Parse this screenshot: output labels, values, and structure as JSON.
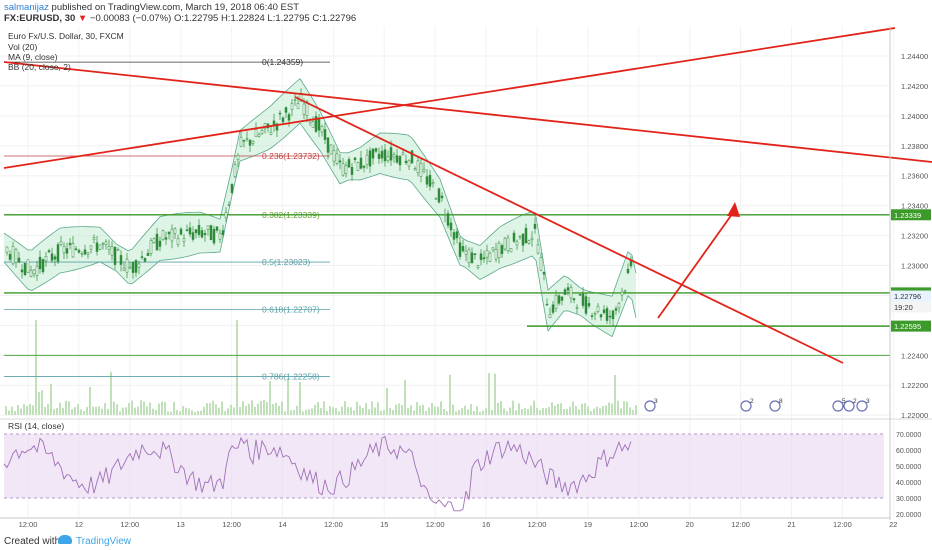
{
  "header": {
    "author": "salmanijaz",
    "published_text": "published on TradingView.com, March 19, 2018 06:40 EST",
    "symbol": "FX:EURUSD, 30",
    "change": "−0.00083 (−0.07%)",
    "ohlc": "O:1.22795 H:1.22824 L:1.22795 C:1.22796"
  },
  "legend": {
    "instrument": "Euro Fx/U.S. Dollar, 30, FXCM",
    "vol": "Vol (20)",
    "ma": "MA (9, close)",
    "bb": "BB (20, close, 2)"
  },
  "rsi_panel": {
    "label": "RSI (14, close)"
  },
  "footer": {
    "created_with": "Created with",
    "brand": "TradingView"
  },
  "colors": {
    "red_line": "#e2231a",
    "green_line": "#3c9a2a",
    "bb_fill": "#c8ecd6",
    "bb_edge": "#5aa98a",
    "candle": "#2e8b3a",
    "rsi_fill": "#e6d3ee",
    "rsi_line": "#a070b8",
    "volume": "#bfe0b8",
    "fib_text": "#5aa0a8"
  },
  "chart_data": {
    "type": "candlestick",
    "price_axis_ticks": [
      "1.24400",
      "1.24200",
      "1.24000",
      "1.23800",
      "1.23600",
      "1.23400",
      "1.23200",
      "1.23000",
      "1.22800",
      "1.22600",
      "1.22400",
      "1.22200",
      "1.22000"
    ],
    "price_tags": [
      {
        "value": "1.23339",
        "kind": "green-level"
      },
      {
        "value": "1.22817",
        "kind": "green-level"
      },
      {
        "value": "1.22796",
        "kind": "last-price"
      },
      {
        "value": "19:20",
        "kind": "countdown"
      },
      {
        "value": "1.22595",
        "kind": "green-level"
      }
    ],
    "time_axis_ticks": [
      "12:00",
      "12",
      "12:00",
      "13",
      "12:00",
      "14",
      "12:00",
      "15",
      "12:00",
      "16",
      "12:00",
      "19",
      "12:00",
      "20",
      "12:00",
      "21",
      "12:00",
      "22"
    ],
    "rsi_axis_ticks": [
      "70.0000",
      "60.0000",
      "50.0000",
      "40.0000",
      "30.0000",
      "20.0000"
    ],
    "fibonacci": [
      {
        "label": "0(1.24359)",
        "value": 1.24359
      },
      {
        "label": "0.236(1.23732)",
        "value": 1.23732
      },
      {
        "label": "0.382(1.23339)",
        "value": 1.23339
      },
      {
        "label": "0.5(1.23023)",
        "value": 1.23023
      },
      {
        "label": "0.618(1.22707)",
        "value": 1.22707
      },
      {
        "label": "0.786(1.22258)",
        "value": 1.22258
      }
    ],
    "horizontal_levels": [
      1.23339,
      1.22817,
      1.22595,
      1.224
    ],
    "events": [
      "3",
      "2",
      "8",
      "5",
      "2",
      "3"
    ]
  }
}
